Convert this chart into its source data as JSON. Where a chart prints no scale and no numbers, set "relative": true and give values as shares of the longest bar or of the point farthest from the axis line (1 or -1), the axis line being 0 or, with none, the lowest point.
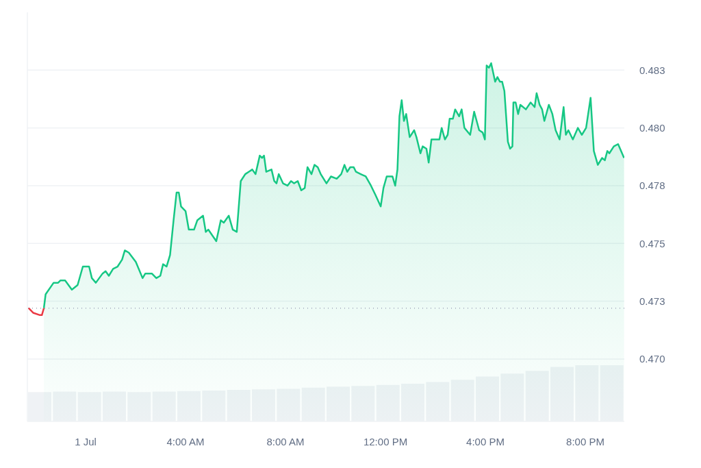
{
  "chart_data": [
    {
      "type": "area",
      "xlim": [
        -2.33,
        21.56
      ],
      "ylim": [
        0.4673,
        0.485
      ],
      "xticks": [
        {
          "value": 0,
          "label": "1 Jul"
        },
        {
          "value": 4,
          "label": "4:00 AM"
        },
        {
          "value": 8,
          "label": "8:00 AM"
        },
        {
          "value": 12,
          "label": "12:00 PM"
        },
        {
          "value": 16,
          "label": "4:00 PM"
        },
        {
          "value": 20,
          "label": "8:00 PM"
        }
      ],
      "yticks": [
        {
          "value": 0.47,
          "label": "0.470"
        },
        {
          "value": 0.4725,
          "label": "0.473"
        },
        {
          "value": 0.475,
          "label": "0.475"
        },
        {
          "value": 0.4775,
          "label": "0.478"
        },
        {
          "value": 0.48,
          "label": "0.480"
        },
        {
          "value": 0.4825,
          "label": "0.483"
        }
      ],
      "grid": "y",
      "ref_lines": [
        {
          "axis": "y",
          "value": 0.4722,
          "line_style": "dotted",
          "color": "#a1a7bb"
        }
      ],
      "series": [
        {
          "type": "line",
          "color": "#ea3943",
          "x": [
            -2.28,
            -2.1,
            -1.83,
            -1.75,
            -1.67
          ],
          "values": [
            0.4722,
            0.472,
            0.4719,
            0.4719,
            0.4722
          ]
        },
        {
          "color": "#16c784",
          "x": [
            -1.67,
            -1.6,
            -1.28,
            -1.1,
            -1.01,
            -0.82,
            -0.55,
            -0.32,
            -0.11,
            0.14,
            0.25,
            0.41,
            0.68,
            0.8,
            0.93,
            1.1,
            1.28,
            1.46,
            1.57,
            1.73,
            2.01,
            2.28,
            2.39,
            2.65,
            2.83,
            2.99,
            3.1,
            3.24,
            3.38,
            3.52,
            3.64,
            3.73,
            3.82,
            4,
            4.13,
            4.34,
            4.47,
            4.7,
            4.81,
            4.91,
            5.23,
            5.41,
            5.53,
            5.73,
            5.89,
            6.05,
            6.21,
            6.39,
            6.53,
            6.67,
            6.8,
            6.97,
            7.06,
            7.14,
            7.23,
            7.44,
            7.55,
            7.64,
            7.73,
            7.9,
            8.08,
            8.22,
            8.34,
            8.49,
            8.63,
            8.77,
            8.88,
            9.04,
            9.16,
            9.29,
            9.41,
            9.64,
            9.82,
            10.05,
            10.23,
            10.36,
            10.47,
            10.59,
            10.73,
            10.82,
            11.01,
            11.21,
            11.42,
            11.6,
            11.81,
            11.92,
            12.05,
            12.19,
            12.28,
            12.39,
            12.48,
            12.56,
            12.65,
            12.74,
            12.83,
            12.97,
            13.15,
            13.24,
            13.4,
            13.49,
            13.64,
            13.73,
            13.84,
            14.02,
            14.16,
            14.25,
            14.38,
            14.49,
            14.57,
            14.7,
            14.79,
            14.95,
            15.05,
            15.16,
            15.39,
            15.55,
            15.75,
            15.89,
            15.98,
            16.05,
            16.14,
            16.23,
            16.39,
            16.48,
            16.58,
            16.67,
            16.76,
            16.9,
            16.99,
            17.08,
            17.12,
            17.21,
            17.31,
            17.4,
            17.62,
            17.81,
            17.97,
            18.05,
            18.17,
            18.27,
            18.36,
            18.54,
            18.68,
            18.81,
            18.97,
            19.13,
            19.22,
            19.32,
            19.5,
            19.7,
            19.86,
            20.03,
            20.21,
            20.34,
            20.5,
            20.67,
            20.78,
            20.88,
            20.96,
            21.14,
            21.31,
            21.55
          ],
          "values": [
            0.4722,
            0.4728,
            0.4733,
            0.4733,
            0.4734,
            0.4734,
            0.473,
            0.4732,
            0.474,
            0.474,
            0.4735,
            0.4733,
            0.4737,
            0.4738,
            0.4736,
            0.4739,
            0.474,
            0.4743,
            0.4747,
            0.4746,
            0.4742,
            0.4735,
            0.4737,
            0.4737,
            0.4735,
            0.4736,
            0.4741,
            0.474,
            0.4745,
            0.476,
            0.4772,
            0.4772,
            0.4766,
            0.4764,
            0.4756,
            0.4756,
            0.476,
            0.4762,
            0.4755,
            0.4756,
            0.4751,
            0.476,
            0.4759,
            0.4762,
            0.4756,
            0.4755,
            0.4777,
            0.478,
            0.4781,
            0.4782,
            0.478,
            0.4788,
            0.4787,
            0.4788,
            0.4781,
            0.4782,
            0.4777,
            0.4776,
            0.478,
            0.4776,
            0.4775,
            0.4777,
            0.4776,
            0.4777,
            0.4773,
            0.4774,
            0.4783,
            0.478,
            0.4784,
            0.4783,
            0.478,
            0.4776,
            0.4779,
            0.4778,
            0.478,
            0.4784,
            0.4781,
            0.4783,
            0.4783,
            0.4781,
            0.478,
            0.4779,
            0.4775,
            0.4771,
            0.4766,
            0.4774,
            0.4779,
            0.4779,
            0.4779,
            0.4775,
            0.4782,
            0.4805,
            0.4812,
            0.4803,
            0.4806,
            0.4796,
            0.4799,
            0.4796,
            0.4789,
            0.4792,
            0.4791,
            0.4785,
            0.4795,
            0.4795,
            0.4795,
            0.48,
            0.4795,
            0.4797,
            0.4804,
            0.4804,
            0.4808,
            0.4805,
            0.4808,
            0.48,
            0.4797,
            0.4807,
            0.4799,
            0.4798,
            0.4795,
            0.4827,
            0.4826,
            0.4828,
            0.482,
            0.4822,
            0.482,
            0.482,
            0.4816,
            0.4794,
            0.4791,
            0.4792,
            0.4811,
            0.4811,
            0.4806,
            0.481,
            0.4808,
            0.4811,
            0.4809,
            0.4815,
            0.481,
            0.4808,
            0.4803,
            0.481,
            0.4806,
            0.4799,
            0.4795,
            0.4809,
            0.4797,
            0.4799,
            0.4795,
            0.48,
            0.4797,
            0.48,
            0.4813,
            0.479,
            0.4784,
            0.4787,
            0.4786,
            0.479,
            0.4789,
            0.4792,
            0.4793,
            0.4787
          ]
        }
      ]
    },
    {
      "type": "bar",
      "relative": true,
      "tick_labels": false,
      "color": "#eff2f5",
      "categories": [
        null,
        null,
        null,
        null,
        null,
        null,
        null,
        null,
        null,
        null,
        null,
        null,
        null,
        null,
        null,
        null,
        null,
        null,
        null,
        null,
        null,
        null,
        null,
        null
      ],
      "values": [
        0.52,
        0.53,
        0.52,
        0.53,
        0.52,
        0.53,
        0.54,
        0.55,
        0.56,
        0.57,
        0.58,
        0.6,
        0.62,
        0.63,
        0.65,
        0.67,
        0.7,
        0.74,
        0.8,
        0.85,
        0.9,
        0.97,
        1,
        1
      ]
    }
  ]
}
